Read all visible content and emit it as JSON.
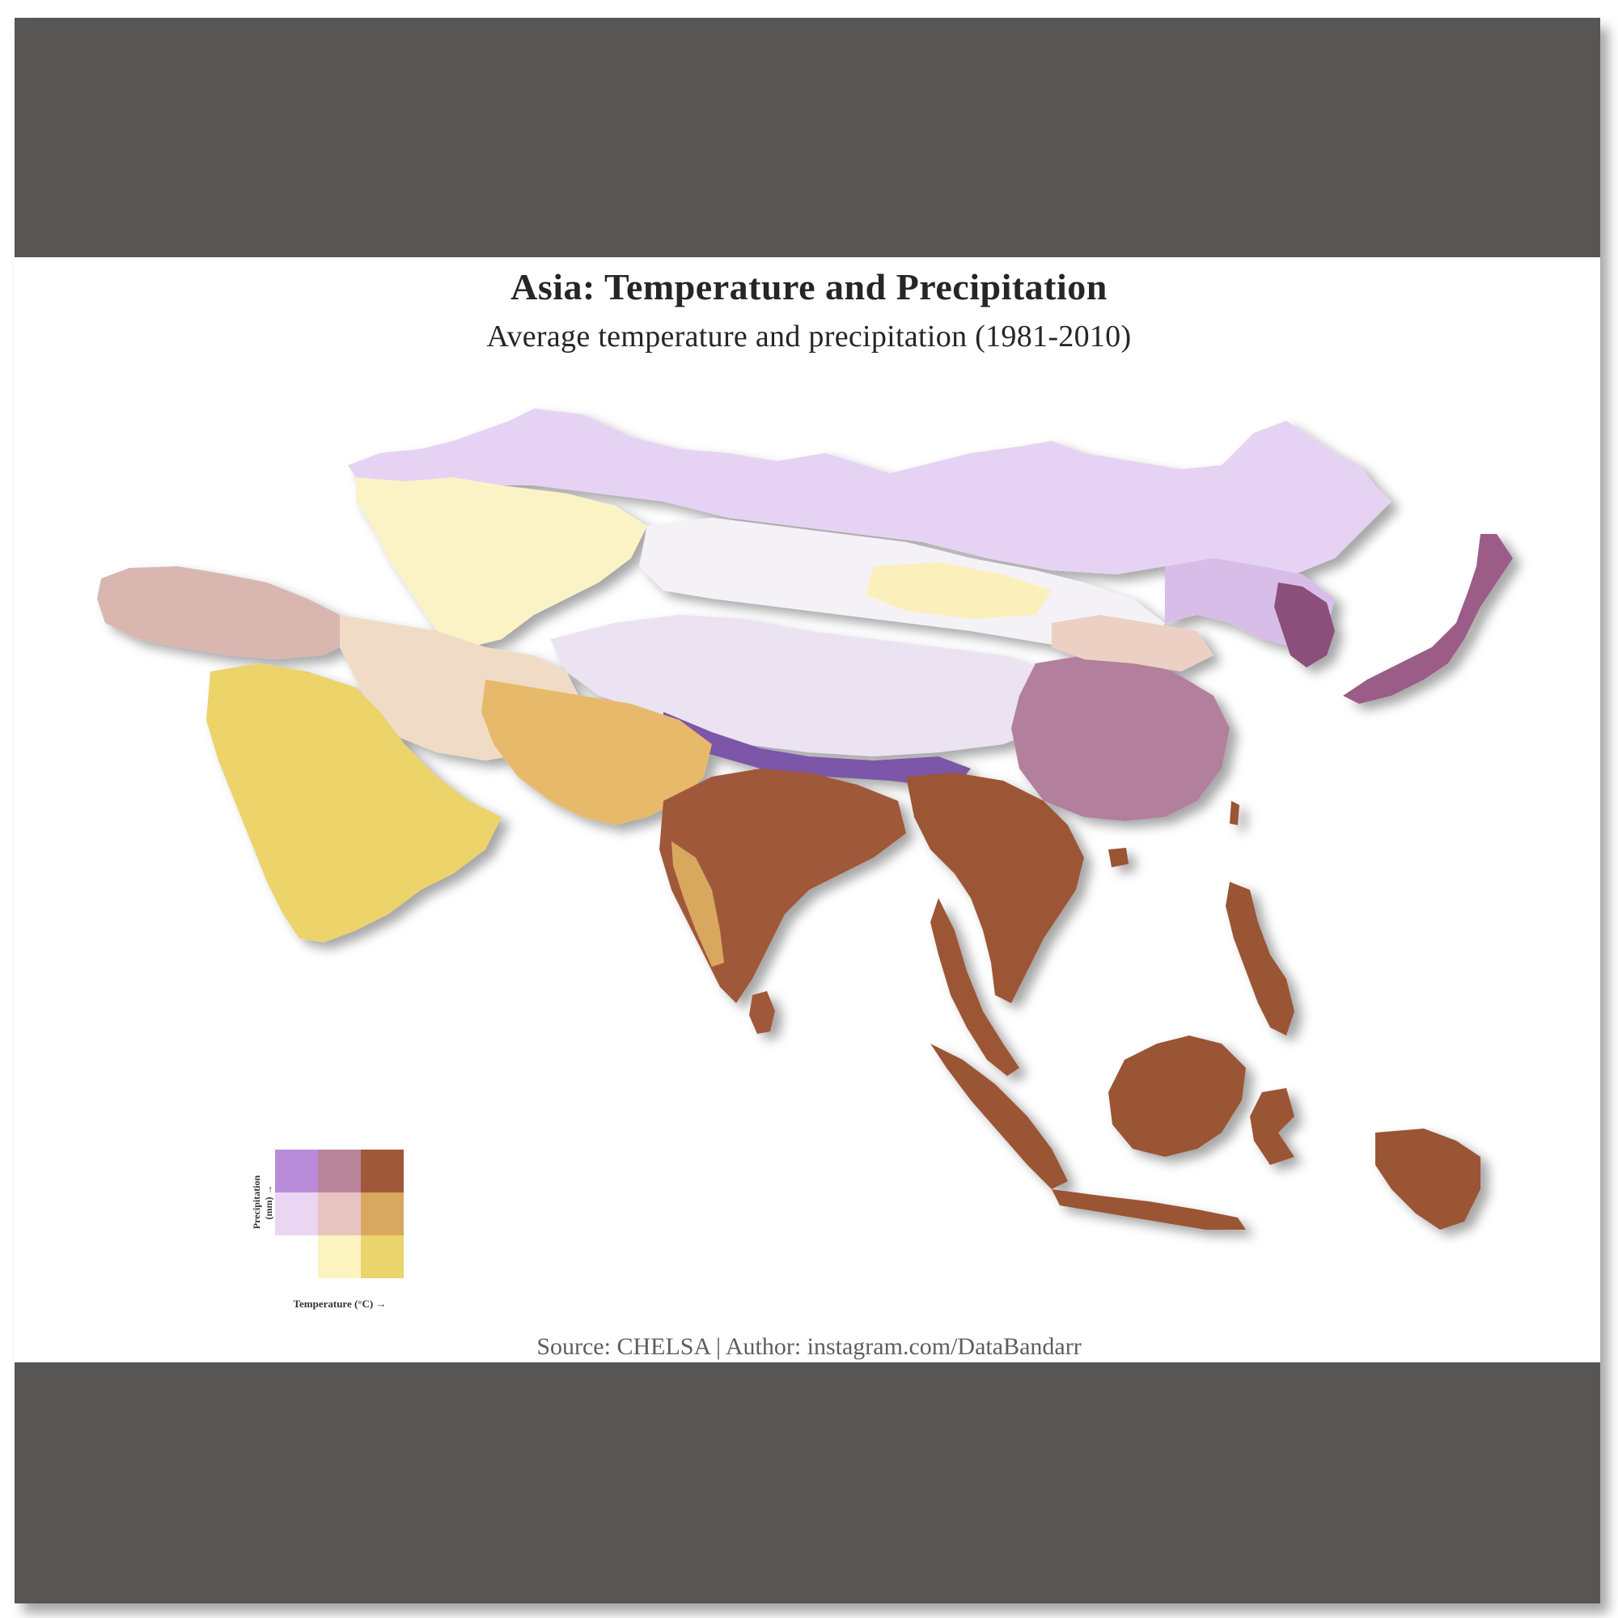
{
  "header": {
    "title": "Asia: Temperature and Precipitation",
    "subtitle": "Average temperature and precipitation (1981-2010)"
  },
  "footer": {
    "source": "Source: CHELSA | Author: instagram.com/DataBandarr"
  },
  "legend": {
    "x_label": "Temperature (°C) →",
    "y_label_line1": "Precipitation",
    "y_label_line2": "(mm) →",
    "cells": [
      {
        "row": 0,
        "col": 0,
        "color": "#b88cd9"
      },
      {
        "row": 0,
        "col": 1,
        "color": "#b8849a"
      },
      {
        "row": 0,
        "col": 2,
        "color": "#a0583a"
      },
      {
        "row": 1,
        "col": 0,
        "color": "#ead6f2"
      },
      {
        "row": 1,
        "col": 1,
        "color": "#e8c4c0"
      },
      {
        "row": 1,
        "col": 2,
        "color": "#d8a860"
      },
      {
        "row": 2,
        "col": 0,
        "color": "#ffffff"
      },
      {
        "row": 2,
        "col": 1,
        "color": "#fcf4c0"
      },
      {
        "row": 2,
        "col": 2,
        "color": "#ead46c"
      }
    ]
  },
  "colors": {
    "band": "#575655",
    "cold_dry": "#ffffff",
    "cold_wet": "#b88cd9",
    "hot_dry": "#ead46c",
    "hot_wet": "#a0583a"
  }
}
